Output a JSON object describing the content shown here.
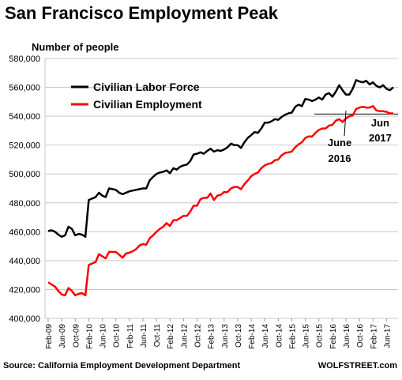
{
  "chart_data": {
    "type": "line",
    "title": "San Francisco Employment Peak",
    "ylabel": "Number of people",
    "ylim": [
      400000,
      580000
    ],
    "y_ticks": [
      "400,000",
      "420,000",
      "440,000",
      "460,000",
      "480,000",
      "500,000",
      "520,000",
      "540,000",
      "560,000",
      "580,000"
    ],
    "x_tick_labels": [
      "Feb-09",
      "Jun-09",
      "Oct-09",
      "Feb-10",
      "Jun-10",
      "Oct-10",
      "Feb-11",
      "Jun-11",
      "Oct-11",
      "Feb-12",
      "Jun-12",
      "Oct-12",
      "Feb-13",
      "Jun-13",
      "Oct-13",
      "Feb-14",
      "Jun-14",
      "Oct-14",
      "Feb-15",
      "Jun-15",
      "Oct-15",
      "Feb-16",
      "Jun-16",
      "Oct-16",
      "Feb-17",
      "Jun-17"
    ],
    "x_start": "2009-02",
    "x_end": "2017-06",
    "grid": true,
    "legend": "top-left",
    "series": [
      {
        "name": "Civilian Labor Force",
        "color": "#000000",
        "values": [
          460500,
          461000,
          460000,
          458000,
          456500,
          457500,
          463500,
          462000,
          457500,
          458500,
          458000,
          456500,
          482000,
          483000,
          484000,
          487000,
          485000,
          484000,
          490000,
          489500,
          489000,
          487000,
          486000,
          487000,
          488000,
          488500,
          489000,
          489500,
          490000,
          490000,
          495500,
          498000,
          500000,
          501000,
          501500,
          502500,
          500500,
          504000,
          503000,
          505000,
          506000,
          506500,
          509000,
          513500,
          514000,
          515000,
          514000,
          516000,
          517500,
          515500,
          516500,
          516000,
          517000,
          518500,
          521000,
          520000,
          520000,
          518000,
          522000,
          525000,
          527000,
          529000,
          528500,
          531500,
          535500,
          535500,
          536500,
          538000,
          537500,
          539500,
          541000,
          542000,
          542500,
          546500,
          548000,
          547000,
          552000,
          551500,
          550500,
          551500,
          553000,
          551500,
          555000,
          556000,
          553500,
          557000,
          561500,
          558000,
          555000,
          555000,
          559000,
          565000,
          564000,
          563500,
          564500,
          562000,
          563500,
          561000,
          560000,
          561500,
          559000,
          558000,
          560000
        ]
      },
      {
        "name": "Civilian Employment",
        "color": "#ff0000",
        "values": [
          425000,
          423500,
          422000,
          419000,
          416500,
          416000,
          421000,
          419000,
          416000,
          417000,
          417500,
          416000,
          437000,
          438000,
          439000,
          444500,
          443000,
          441500,
          446000,
          446000,
          446000,
          444000,
          442000,
          445000,
          445500,
          446500,
          448000,
          450500,
          451500,
          451000,
          455500,
          457500,
          460000,
          462000,
          463500,
          466000,
          464000,
          468000,
          468000,
          469500,
          471000,
          471000,
          474000,
          478000,
          478000,
          482500,
          483500,
          483500,
          486500,
          482000,
          485000,
          485500,
          487500,
          487500,
          490000,
          491000,
          491000,
          489500,
          493000,
          495500,
          498500,
          500000,
          501000,
          504000,
          506000,
          507000,
          507500,
          509500,
          510000,
          513000,
          514500,
          515000,
          515500,
          518500,
          520500,
          522000,
          525000,
          526000,
          526000,
          528500,
          530500,
          531500,
          531500,
          533500,
          534000,
          537000,
          538000,
          536000,
          538500,
          540000,
          540500,
          545000,
          546000,
          546500,
          546000,
          546000,
          547000,
          544000,
          543500,
          543500,
          543000,
          542000,
          542000
        ]
      }
    ],
    "annotations": [
      {
        "text": "June 2016",
        "lines": [
          "June",
          "2016"
        ],
        "x": "2016-06"
      },
      {
        "text": "Jun 2017",
        "lines": [
          "Jun",
          "2017"
        ],
        "x": "2017-06"
      }
    ],
    "reference_line": 541500,
    "source": "Source: California Employment Development Department",
    "credit": "WOLFSTREET.com"
  }
}
